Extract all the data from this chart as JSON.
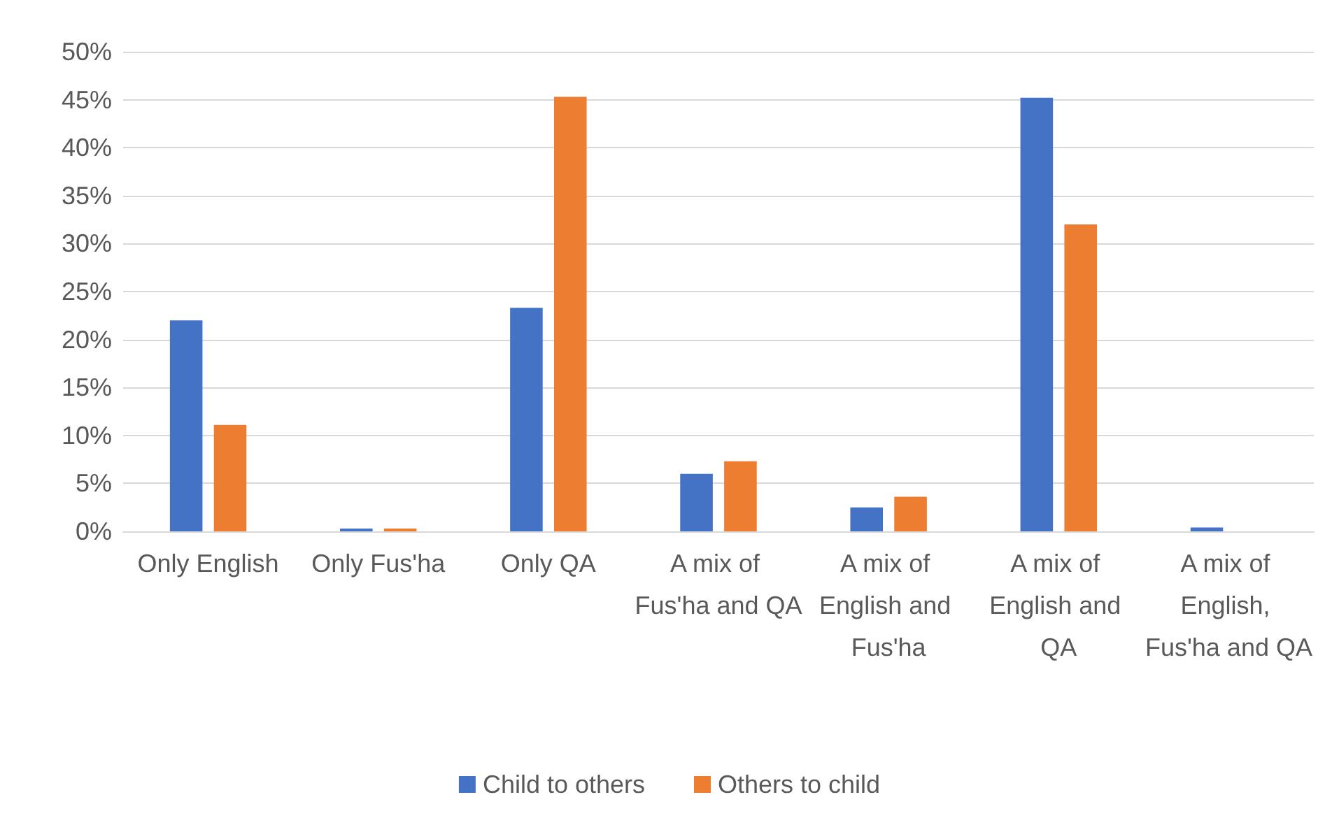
{
  "chart_data": {
    "type": "bar",
    "categories": [
      "Only English",
      "Only Fus'ha",
      "Only QA",
      "A mix of Fus'ha and QA",
      "A mix of English and Fus'ha",
      "A mix of English and QA",
      "A mix of English, Fus'ha and QA"
    ],
    "series": [
      {
        "name": "Child to others",
        "color": "#4472c4",
        "values": [
          22,
          0.3,
          23.3,
          6,
          2.5,
          45.2,
          0.4
        ]
      },
      {
        "name": "Others to child",
        "color": "#ed7d31",
        "values": [
          11.1,
          0.3,
          45.3,
          7.3,
          3.6,
          32,
          0
        ]
      }
    ],
    "ylim": [
      0,
      50
    ],
    "yticks": [
      {
        "value": 0,
        "label": "0%"
      },
      {
        "value": 5,
        "label": "5%"
      },
      {
        "value": 10,
        "label": "10%"
      },
      {
        "value": 15,
        "label": "15%"
      },
      {
        "value": 20,
        "label": "20%"
      },
      {
        "value": 25,
        "label": "25%"
      },
      {
        "value": 30,
        "label": "30%"
      },
      {
        "value": 35,
        "label": "35%"
      },
      {
        "value": 40,
        "label": "40%"
      },
      {
        "value": 45,
        "label": "45%"
      },
      {
        "value": 50,
        "label": "50%"
      }
    ],
    "grid": "y",
    "legend": "bottom"
  }
}
